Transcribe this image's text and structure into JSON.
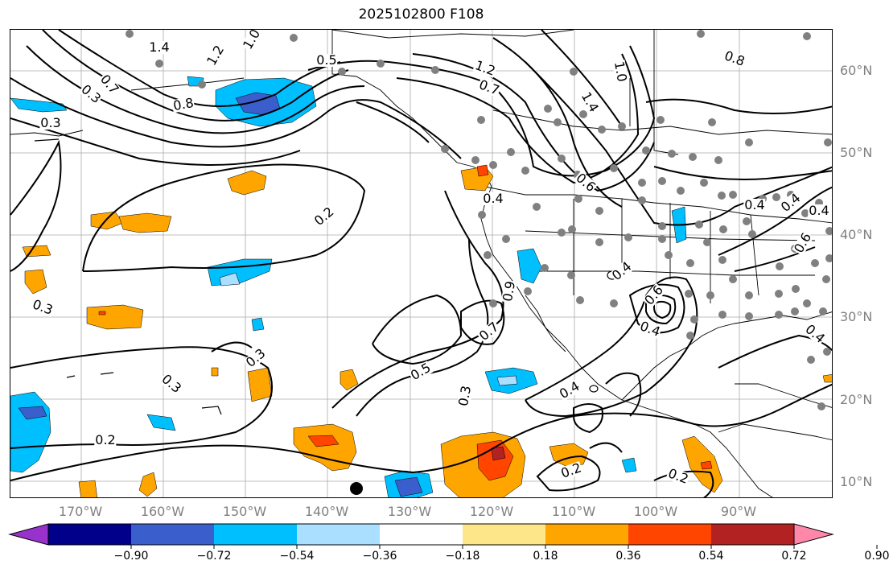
{
  "title": "2025102800 F108",
  "lat_labels": [
    "60°N",
    "50°N",
    "40°N",
    "30°N",
    "20°N",
    "10°N"
  ],
  "lon_labels": [
    "170°W",
    "160°W",
    "150°W",
    "140°W",
    "130°W",
    "120°W",
    "110°W",
    "100°W",
    "90°W"
  ],
  "colorbar": {
    "tick_labels": [
      "−0.90",
      "−0.72",
      "−0.54",
      "−0.36",
      "−0.18",
      "0.18",
      "0.36",
      "0.54",
      "0.72",
      "0.90"
    ],
    "colors": [
      "#9932cc",
      "#00008b",
      "#3a5fcd",
      "#00bfff",
      "#aadfff",
      "#ffffff",
      "#fde68a",
      "#ffa500",
      "#ff4500",
      "#b22222",
      "#ff88aa"
    ]
  },
  "contour_labels": [
    "1.4",
    "1.2",
    "1.0",
    "0.5",
    "0.7",
    "0.3",
    "0.8",
    "0.3",
    "0.2",
    "0.3",
    "0.3",
    "0.3",
    "0.2",
    "0.5",
    "0.7",
    "0.9",
    "0.3",
    "0.4",
    "0.2",
    "0.2",
    "0.6",
    "0.4",
    "0.4",
    "0.4",
    "0.8",
    "1.2",
    "0.7",
    "1.0",
    "1.4",
    "0.6",
    "0.4",
    "0.4",
    "0.4",
    "0.6",
    "0.4"
  ]
}
